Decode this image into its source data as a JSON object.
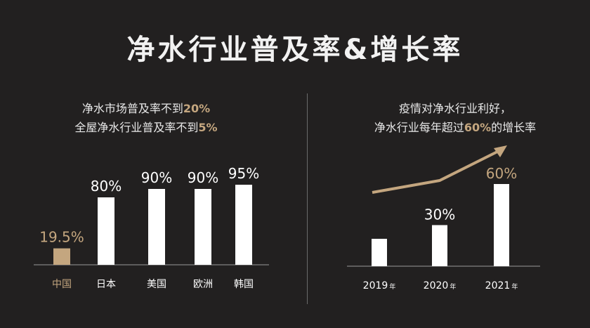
{
  "title": "净水行业普及率&增长率",
  "colors": {
    "background": "#222020",
    "accent": "#c4a67f",
    "bar": "#ffffff",
    "axis": "#9a9a9a"
  },
  "left_panel": {
    "line1_prefix": "净水市场普及率不到",
    "line1_highlight": "20%",
    "line2_prefix": "全屋净水行业普及率不到",
    "line2_highlight": "5%"
  },
  "right_panel": {
    "line1": "疫情对净水行业利好，",
    "line2_prefix": "净水行业每年超过",
    "line2_highlight": "60%",
    "line2_suffix": "的增长率"
  },
  "chart_data": [
    {
      "type": "bar",
      "categories": [
        "中国",
        "日本",
        "美国",
        "欧洲",
        "韩国"
      ],
      "values": [
        19.5,
        80,
        90,
        90,
        95
      ],
      "labels": [
        "19.5%",
        "80%",
        "90%",
        "90%",
        "95%"
      ],
      "highlight_index": 0,
      "ylim": [
        0,
        100
      ]
    },
    {
      "type": "bar",
      "categories": [
        "2019",
        "2020",
        "2021"
      ],
      "category_suffix": "年",
      "values": [
        20,
        30,
        60
      ],
      "labels": [
        "",
        "30%",
        "60%"
      ],
      "highlight_label_index": 2,
      "trend_arrow": true,
      "ylim": [
        0,
        100
      ]
    }
  ]
}
